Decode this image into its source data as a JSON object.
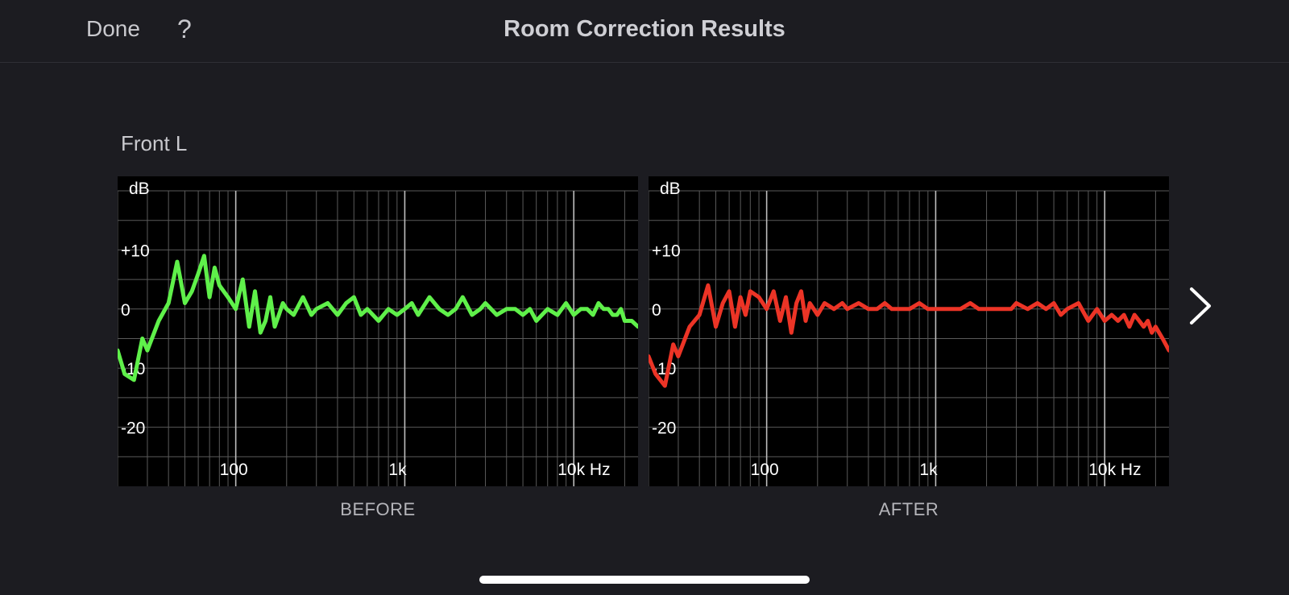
{
  "header": {
    "done_label": "Done",
    "help_label": "?",
    "title": "Room Correction Results"
  },
  "speaker_name": "Front L",
  "icons": {
    "next": "chevron-right-icon",
    "help": "question-mark-icon"
  },
  "colors": {
    "before": "#5ff04a",
    "after": "#ec3426",
    "background": "#1c1c21"
  },
  "chart_data": [
    {
      "type": "line",
      "caption": "BEFORE",
      "ylabel": "dB",
      "x_scale": "log",
      "x_unit": "Hz",
      "xlim": [
        20,
        24000
      ],
      "ylim": [
        -30,
        20
      ],
      "y_ticks": [
        "+10",
        "0",
        "-10",
        "-20"
      ],
      "y_tick_values": [
        10,
        0,
        -10,
        -20
      ],
      "x_ticks": [
        "100",
        "1k",
        "10k Hz"
      ],
      "x_tick_values": [
        100,
        1000,
        10000
      ],
      "series": [
        {
          "color": "#5ff04a",
          "x": [
            20,
            22,
            25,
            28,
            30,
            35,
            40,
            45,
            50,
            55,
            60,
            65,
            70,
            75,
            80,
            90,
            100,
            110,
            120,
            130,
            140,
            150,
            160,
            170,
            180,
            190,
            200,
            220,
            250,
            280,
            300,
            350,
            400,
            450,
            500,
            550,
            600,
            700,
            800,
            900,
            1000,
            1100,
            1200,
            1400,
            1600,
            1800,
            2000,
            2200,
            2500,
            2800,
            3000,
            3500,
            4000,
            4500,
            5000,
            5500,
            6000,
            7000,
            8000,
            9000,
            10000,
            11000,
            12000,
            13000,
            14000,
            15000,
            16000,
            17000,
            18000,
            19000,
            20000,
            22000,
            24000
          ],
          "y": [
            -7,
            -11,
            -12,
            -5,
            -7,
            -2,
            1,
            8,
            1,
            3,
            6,
            9,
            2,
            7,
            4,
            2,
            0,
            5,
            -3,
            3,
            -4,
            -2,
            2,
            -3,
            -1,
            1,
            0,
            -1,
            2,
            -1,
            0,
            1,
            -1,
            1,
            2,
            -1,
            0,
            -2,
            0,
            -1,
            0,
            1,
            -1,
            2,
            0,
            -1,
            0,
            2,
            -1,
            0,
            1,
            -1,
            0,
            0,
            -1,
            0,
            -2,
            0,
            -1,
            1,
            -1,
            0,
            0,
            -1,
            1,
            0,
            0,
            -1,
            -1,
            0,
            -2,
            -2,
            -3
          ]
        }
      ]
    },
    {
      "type": "line",
      "caption": "AFTER",
      "ylabel": "dB",
      "x_scale": "log",
      "x_unit": "Hz",
      "xlim": [
        20,
        24000
      ],
      "ylim": [
        -30,
        20
      ],
      "y_ticks": [
        "+10",
        "0",
        "-10",
        "-20"
      ],
      "y_tick_values": [
        10,
        0,
        -10,
        -20
      ],
      "x_ticks": [
        "100",
        "1k",
        "10k Hz"
      ],
      "x_tick_values": [
        100,
        1000,
        10000
      ],
      "series": [
        {
          "color": "#ec3426",
          "x": [
            20,
            22,
            25,
            28,
            30,
            35,
            40,
            45,
            50,
            55,
            60,
            65,
            70,
            75,
            80,
            90,
            100,
            110,
            120,
            130,
            140,
            150,
            160,
            170,
            180,
            190,
            200,
            220,
            250,
            280,
            300,
            350,
            400,
            450,
            500,
            550,
            600,
            700,
            800,
            900,
            1000,
            1100,
            1200,
            1400,
            1600,
            1800,
            2000,
            2200,
            2500,
            2800,
            3000,
            3500,
            4000,
            4500,
            5000,
            5500,
            6000,
            7000,
            8000,
            9000,
            10000,
            11000,
            12000,
            13000,
            14000,
            15000,
            16000,
            17000,
            18000,
            19000,
            20000,
            22000,
            24000
          ],
          "y": [
            -8,
            -11,
            -13,
            -6,
            -8,
            -3,
            -1,
            4,
            -3,
            1,
            3,
            -3,
            2,
            -1,
            3,
            2,
            0,
            3,
            -2,
            2,
            -4,
            1,
            3,
            -2,
            1,
            0,
            -1,
            1,
            0,
            1,
            0,
            1,
            0,
            0,
            1,
            0,
            0,
            0,
            1,
            0,
            0,
            0,
            0,
            0,
            1,
            0,
            0,
            0,
            0,
            0,
            1,
            0,
            1,
            0,
            1,
            -1,
            0,
            1,
            -2,
            0,
            -2,
            -1,
            -2,
            -1,
            -3,
            -1,
            -2,
            -3,
            -2,
            -4,
            -3,
            -5,
            -7
          ]
        }
      ]
    }
  ]
}
